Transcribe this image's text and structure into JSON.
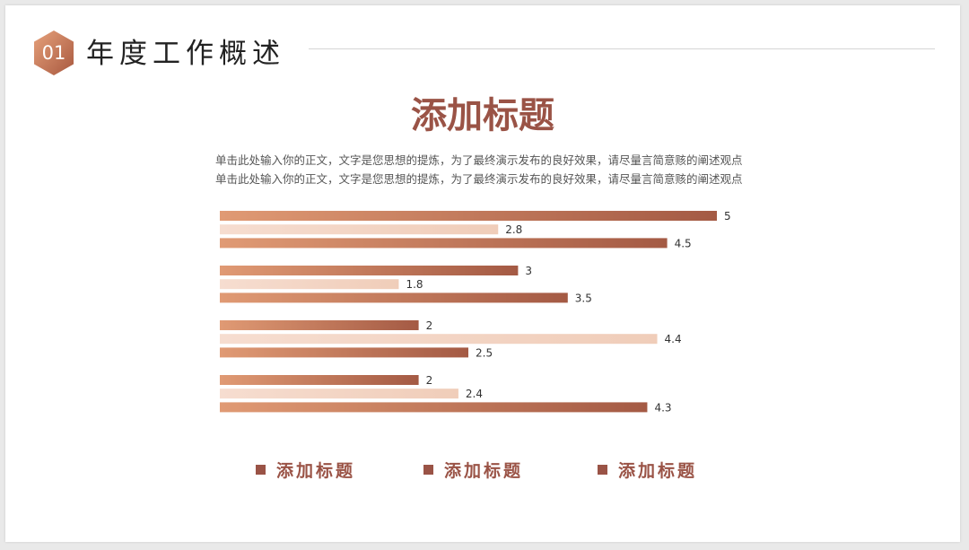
{
  "section": {
    "number": "01",
    "title": "年度工作概述"
  },
  "main_title": "添加标题",
  "body_lines": [
    "单击此处输入你的正文，文字是您思想的提炼，为了最终演示发布的良好效果，请尽量言简意赅的阐述观点",
    "单击此处输入你的正文，文字是您思想的提炼，为了最终演示发布的良好效果，请尽量言简意赅的阐述观点"
  ],
  "colors": {
    "accent": "#9a5346",
    "dark_bar": "#b56f55",
    "light_bar": "#f2d3c3",
    "badge": "#c77a57",
    "label": "#333333"
  },
  "chart_data": {
    "type": "bar",
    "orientation": "horizontal",
    "categories": [
      "",
      "",
      "",
      ""
    ],
    "series": [
      {
        "name": "添加标题",
        "values": [
          5,
          3,
          2,
          2
        ]
      },
      {
        "name": "添加标题",
        "values": [
          2.8,
          1.8,
          4.4,
          2.4
        ]
      },
      {
        "name": "添加标题",
        "values": [
          4.5,
          3.5,
          2.5,
          4.3
        ]
      }
    ],
    "xlim": [
      0,
      5
    ],
    "grid": false,
    "data_labels": true,
    "legend_placement": "bottom"
  }
}
